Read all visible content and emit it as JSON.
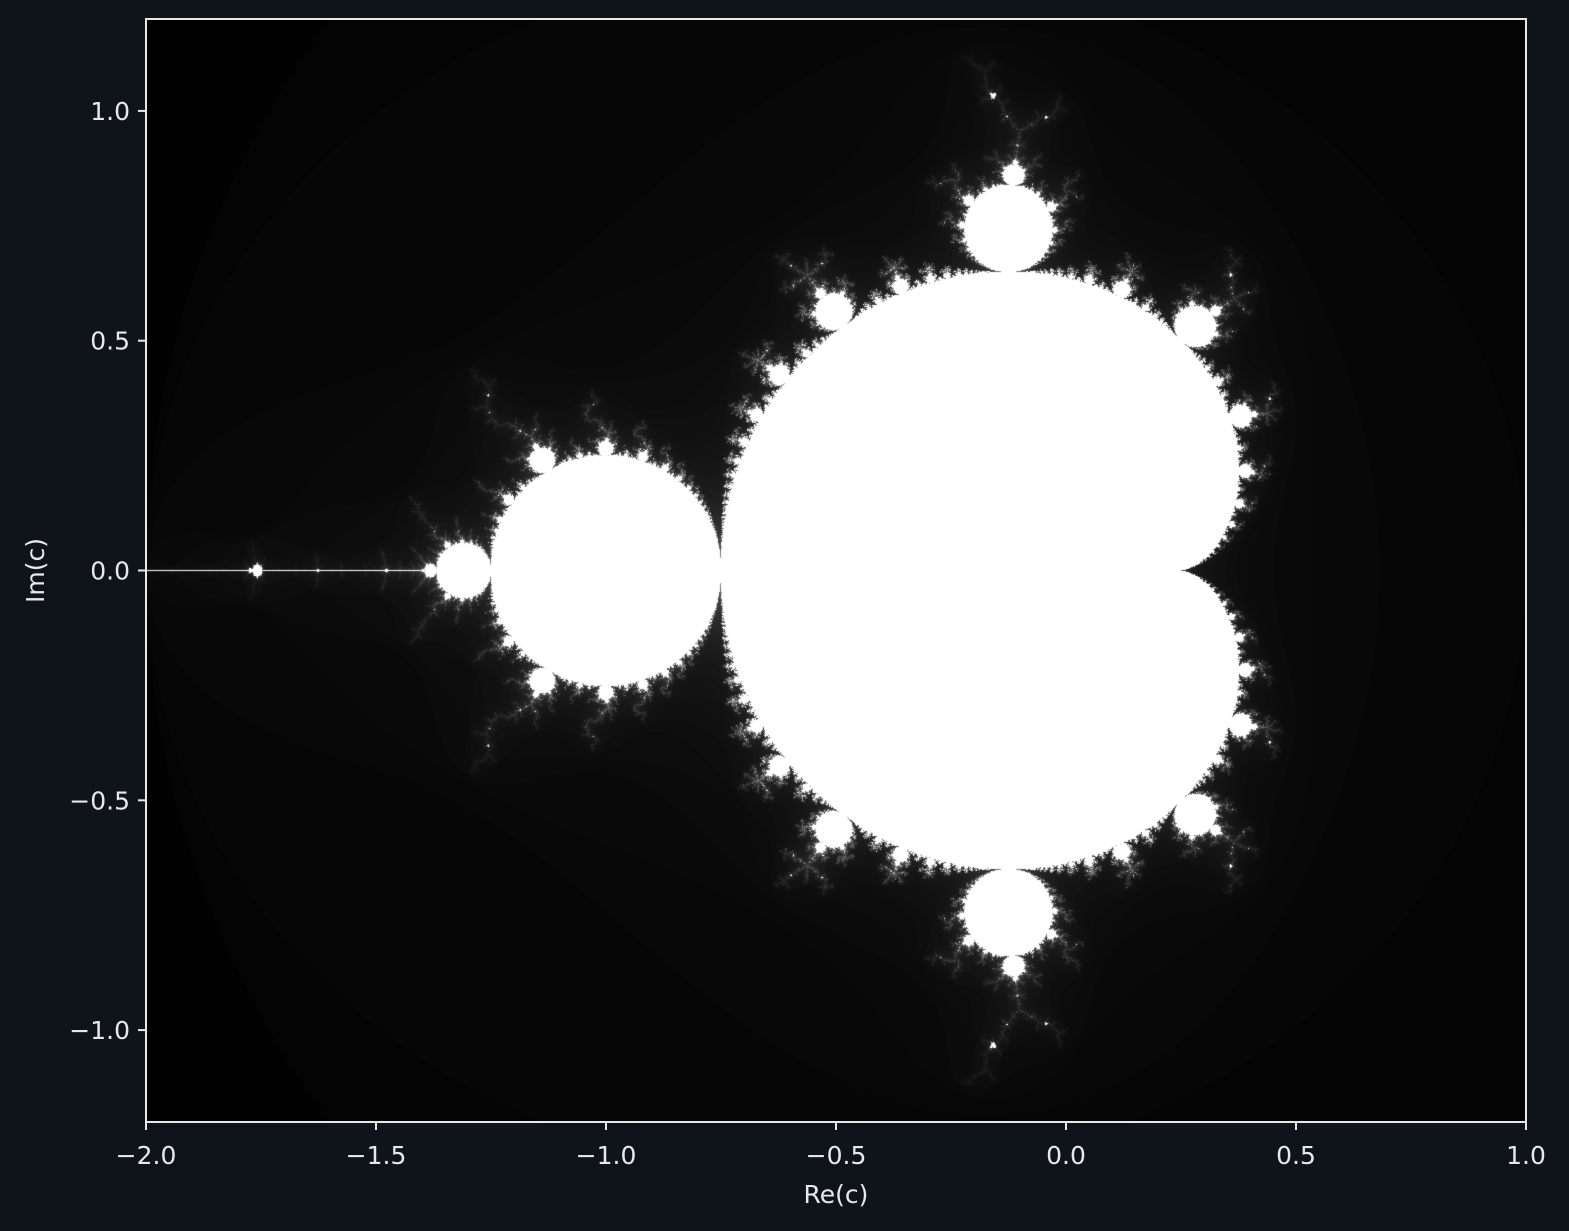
{
  "chart_data": {
    "type": "heatmap",
    "description_of_data": "Mandelbrot set escape-time image, grayscale",
    "xlabel": "Re(c)",
    "ylabel": "Im(c)",
    "xlim": [
      -2.0,
      1.0
    ],
    "ylim": [
      -1.2,
      1.2
    ],
    "x_ticks": [
      {
        "value": -2.0,
        "label": "−2.0"
      },
      {
        "value": -1.5,
        "label": "−1.5"
      },
      {
        "value": -1.0,
        "label": "−1.0"
      },
      {
        "value": -0.5,
        "label": "−0.5"
      },
      {
        "value": 0.0,
        "label": "0.0"
      },
      {
        "value": 0.5,
        "label": "0.5"
      },
      {
        "value": 1.0,
        "label": "1.0"
      }
    ],
    "y_ticks": [
      {
        "value": 1.0,
        "label": "1.0"
      },
      {
        "value": 0.5,
        "label": "0.5"
      },
      {
        "value": 0.0,
        "label": "0.0"
      },
      {
        "value": -0.5,
        "label": "−0.5"
      },
      {
        "value": -1.0,
        "label": "−1.0"
      }
    ],
    "max_iterations": 200,
    "colormap": "gray",
    "grid": false
  },
  "colors": {
    "background": "#0f131a",
    "axis": "#e8e8e8",
    "text": "#e8e8e8"
  }
}
